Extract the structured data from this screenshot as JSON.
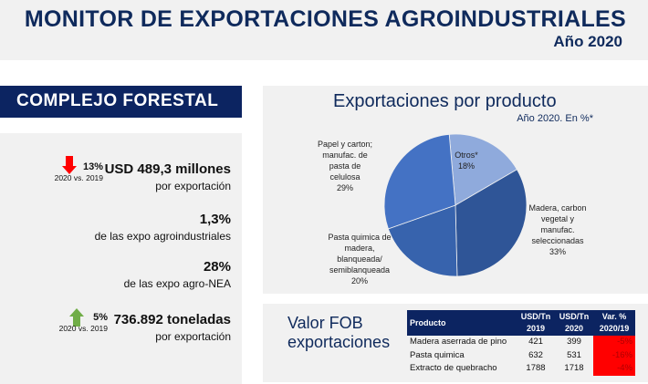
{
  "header": {
    "title": "MONITOR DE EXPORTACIONES AGROINDUSTRIALES",
    "year": "Año 2020"
  },
  "section": "COMPLEJO FORESTAL",
  "stats": [
    {
      "change": "13%",
      "change_dir": "down",
      "compare": "2020 vs. 2019",
      "value": "USD 489,3 millones",
      "label": "por exportación"
    },
    {
      "value": "1,3%",
      "label": "de las expo agroindustriales"
    },
    {
      "value": "28%",
      "label": "de las expo agro-NEA"
    },
    {
      "change": "5%",
      "change_dir": "up",
      "compare": "2020 vs. 2019",
      "value": "736.892 toneladas",
      "label": "por exportación"
    }
  ],
  "colors": {
    "navy": "#0c2461",
    "down": "#ff0000",
    "up": "#70ad47"
  },
  "chart_data": {
    "type": "pie",
    "title": "Exportaciones por producto",
    "subtitle": "Año 2020. En %*",
    "slices": [
      {
        "label": "Otros*",
        "value": 18,
        "color": "#8faadc"
      },
      {
        "label": "Madera, carbon vegetal y manufac. seleccionadas",
        "value": 33,
        "color": "#2f5597"
      },
      {
        "label": "Pasta quimica de madera, blanqueada/ semiblanqueada",
        "value": 20,
        "color": "#3763ad"
      },
      {
        "label": "Papel y carton; manufac. de pasta de celulosa",
        "value": 29,
        "color": "#4472c4"
      }
    ],
    "slice_labels": [
      "Otros*\n18%",
      "Madera,\ncarbon\nvegetal y\nmanufac.\nseleccionadas\n33%",
      "Pasta quimica\nde madera,\nblanqueada/\nsemiblanqueada\n20%",
      "Papel y\ncarton;\nmanufac. de\npasta de\ncelulosa\n29%"
    ]
  },
  "fob": {
    "title": "Valor FOB exportaciones",
    "headers": [
      "Producto",
      "USD/Tn 2019",
      "USD/Tn 2020",
      "Var. % 2020/19"
    ],
    "rows": [
      [
        "Madera aserrada de pino",
        "421",
        "399",
        "-5%"
      ],
      [
        "Pasta quimica",
        "632",
        "531",
        "-16%"
      ],
      [
        "Extracto de quebracho",
        "1788",
        "1718",
        "-4%"
      ]
    ]
  }
}
